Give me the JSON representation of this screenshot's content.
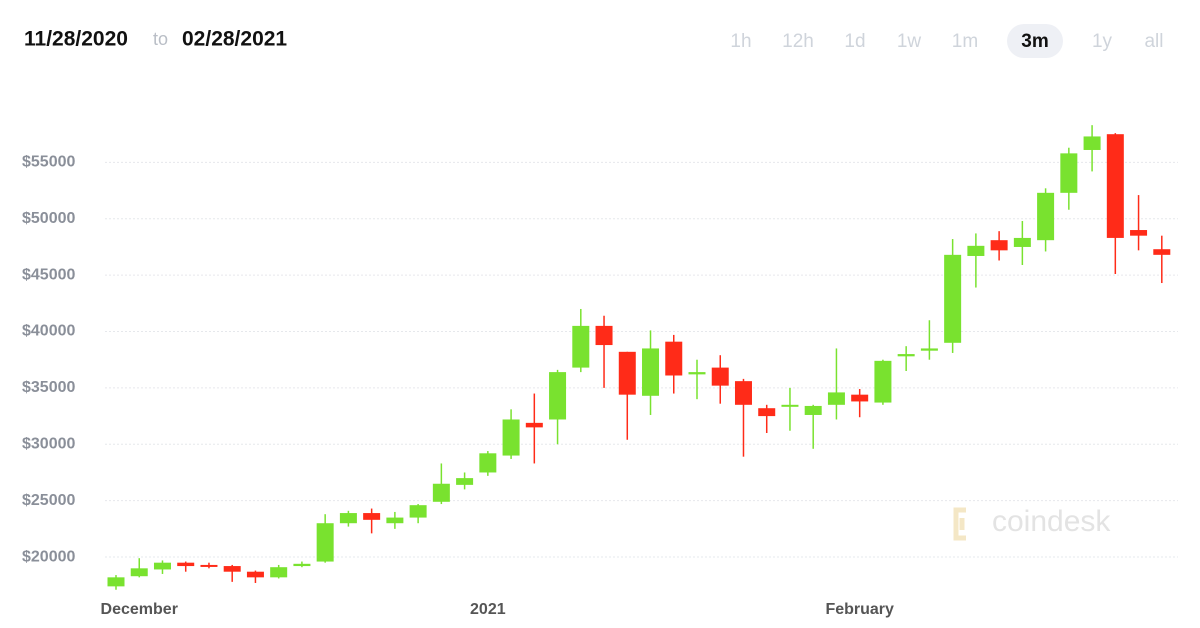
{
  "header": {
    "from": "11/28/2020",
    "to_word": "to",
    "to": "02/28/2021",
    "ranges": [
      "1h",
      "12h",
      "1d",
      "1w",
      "1m",
      "3m",
      "1y",
      "all"
    ],
    "selected_range": 5
  },
  "watermark": "coindesk",
  "chart_data": {
    "type": "candlestick",
    "categories": [
      null,
      "December",
      null,
      null,
      null,
      null,
      null,
      null,
      null,
      null,
      null,
      null,
      null,
      null,
      null,
      null,
      "2021",
      null,
      null,
      null,
      null,
      null,
      null,
      null,
      null,
      null,
      null,
      null,
      null,
      null,
      null,
      null,
      "February",
      null,
      null,
      null,
      null,
      null,
      null,
      null,
      null,
      null,
      null,
      null,
      null,
      null
    ],
    "open": [
      17400,
      18300,
      18900,
      19500,
      19300,
      19200,
      18700,
      18200,
      19200,
      19600,
      23000,
      23900,
      23000,
      23500,
      24900,
      26400,
      27500,
      29000,
      31900,
      32200,
      36800,
      40500,
      38200,
      34300,
      39100,
      36200,
      36800,
      35600,
      33200,
      33400,
      32600,
      33500,
      34400,
      33700,
      37800,
      38300,
      39000,
      46700,
      48100,
      47500,
      48100,
      52300,
      56100,
      57500,
      49000,
      47300
    ],
    "high": [
      18400,
      19900,
      19700,
      19600,
      19500,
      19300,
      18800,
      19300,
      19600,
      23800,
      24100,
      24300,
      24000,
      24700,
      28300,
      27500,
      29400,
      33100,
      34500,
      36600,
      42000,
      41400,
      38200,
      40100,
      39700,
      37500,
      37900,
      35800,
      33500,
      35000,
      33500,
      38500,
      34900,
      37500,
      38700,
      41000,
      48200,
      48700,
      48900,
      49800,
      52700,
      56300,
      58300,
      57600,
      52100,
      48500
    ],
    "low": [
      17100,
      18200,
      18500,
      18700,
      19000,
      17800,
      17700,
      18100,
      19100,
      19500,
      22700,
      22100,
      22500,
      23000,
      24700,
      26000,
      27200,
      28700,
      28300,
      30000,
      36400,
      35000,
      30400,
      32600,
      34500,
      34000,
      33600,
      28900,
      31000,
      31200,
      29600,
      32200,
      32400,
      33500,
      36500,
      37500,
      38100,
      43900,
      46300,
      45900,
      47100,
      50800,
      54200,
      45100,
      47200,
      44300
    ],
    "close": [
      18200,
      19000,
      19500,
      19200,
      19200,
      18700,
      18200,
      19100,
      19400,
      23000,
      23900,
      23300,
      23500,
      24600,
      26500,
      27000,
      29200,
      32200,
      31500,
      36400,
      40500,
      38800,
      34400,
      38500,
      36100,
      36400,
      35200,
      33500,
      32500,
      33500,
      33400,
      34600,
      33800,
      37400,
      38000,
      38500,
      46800,
      47600,
      47200,
      48300,
      52300,
      55800,
      57300,
      48300,
      48500,
      46800
    ],
    "up_color": "#79e22f",
    "down_color": "#ff2b18",
    "ylim": [
      16900,
      60000
    ],
    "yticks": [
      {
        "value": 20000,
        "label": "$20000"
      },
      {
        "value": 25000,
        "label": "$25000"
      },
      {
        "value": 30000,
        "label": "$30000"
      },
      {
        "value": 35000,
        "label": "$35000"
      },
      {
        "value": 40000,
        "label": "$40000"
      },
      {
        "value": 45000,
        "label": "$45000"
      },
      {
        "value": 50000,
        "label": "$50000"
      },
      {
        "value": 55000,
        "label": "$55000"
      }
    ],
    "grid": true
  }
}
